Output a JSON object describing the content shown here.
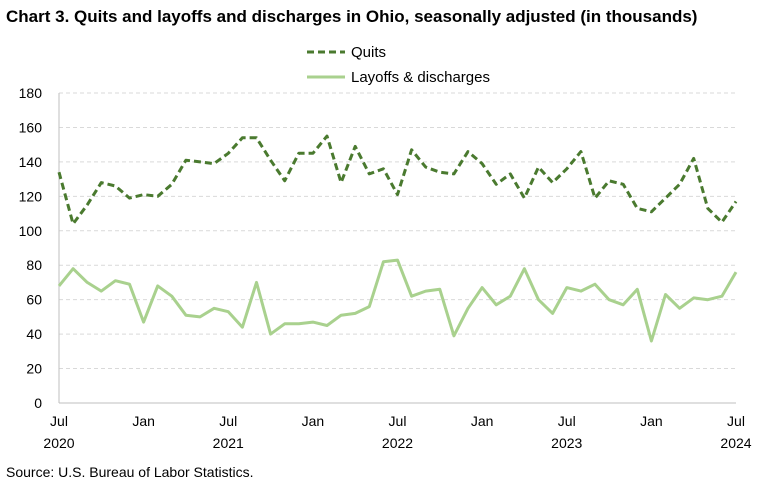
{
  "title": "Chart 3. Quits and layoffs and discharges in Ohio, seasonally adjusted (in thousands)",
  "source": "Source: U.S. Bureau of Labor Statistics.",
  "chart_data": {
    "type": "line",
    "title": "Chart 3. Quits and layoffs and discharges in Ohio, seasonally adjusted (in thousands)",
    "xlabel": "",
    "ylabel": "",
    "ylim": [
      0,
      180
    ],
    "yticks": [
      0,
      20,
      40,
      60,
      80,
      100,
      120,
      140,
      160,
      180
    ],
    "x": [
      "Jul 2020",
      "Aug 2020",
      "Sep 2020",
      "Oct 2020",
      "Nov 2020",
      "Dec 2020",
      "Jan 2021",
      "Feb 2021",
      "Mar 2021",
      "Apr 2021",
      "May 2021",
      "Jun 2021",
      "Jul 2021",
      "Aug 2021",
      "Sep 2021",
      "Oct 2021",
      "Nov 2021",
      "Dec 2021",
      "Jan 2022",
      "Feb 2022",
      "Mar 2022",
      "Apr 2022",
      "May 2022",
      "Jun 2022",
      "Jul 2022",
      "Aug 2022",
      "Sep 2022",
      "Oct 2022",
      "Nov 2022",
      "Dec 2022",
      "Jan 2023",
      "Feb 2023",
      "Mar 2023",
      "Apr 2023",
      "May 2023",
      "Jun 2023",
      "Jul 2023",
      "Aug 2023",
      "Sep 2023",
      "Oct 2023",
      "Nov 2023",
      "Dec 2023",
      "Jan 2024",
      "Feb 2024",
      "Mar 2024",
      "Apr 2024",
      "May 2024",
      "Jun 2024",
      "Jul 2024"
    ],
    "x_tick_labels": [
      {
        "index": 0,
        "month": "Jul",
        "year": "2020"
      },
      {
        "index": 6,
        "month": "Jan",
        "year": ""
      },
      {
        "index": 12,
        "month": "Jul",
        "year": "2021"
      },
      {
        "index": 18,
        "month": "Jan",
        "year": ""
      },
      {
        "index": 24,
        "month": "Jul",
        "year": "2022"
      },
      {
        "index": 30,
        "month": "Jan",
        "year": ""
      },
      {
        "index": 36,
        "month": "Jul",
        "year": "2023"
      },
      {
        "index": 42,
        "month": "Jan",
        "year": ""
      },
      {
        "index": 48,
        "month": "Jul",
        "year": "2024"
      }
    ],
    "grid": "horizontal dashed",
    "legend": "top-center",
    "series": [
      {
        "name": "Quits",
        "color": "#4a7a2f",
        "style": "dashed",
        "values": [
          134,
          104,
          115,
          128,
          126,
          119,
          121,
          120,
          127,
          141,
          140,
          139,
          145,
          154,
          154,
          141,
          129,
          145,
          145,
          155,
          128,
          149,
          133,
          136,
          121,
          147,
          137,
          134,
          133,
          146,
          139,
          127,
          133,
          119,
          137,
          128,
          136,
          146,
          119,
          129,
          127,
          113,
          111,
          119,
          127,
          142,
          113,
          105,
          117
        ]
      },
      {
        "name": "Layoffs & discharges",
        "color": "#a9d18e",
        "style": "solid",
        "values": [
          68,
          78,
          70,
          65,
          71,
          69,
          47,
          68,
          62,
          51,
          50,
          55,
          53,
          44,
          70,
          40,
          46,
          46,
          47,
          45,
          51,
          52,
          56,
          82,
          83,
          62,
          65,
          66,
          39,
          55,
          67,
          57,
          62,
          78,
          60,
          52,
          67,
          65,
          69,
          60,
          57,
          66,
          36,
          63,
          55,
          61,
          60,
          62,
          76
        ]
      }
    ]
  }
}
